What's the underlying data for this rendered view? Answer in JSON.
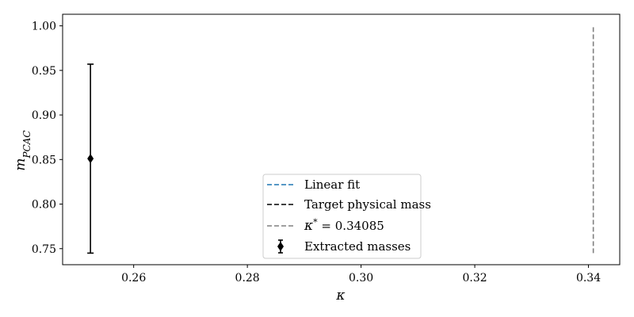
{
  "chart_data": {
    "type": "scatter",
    "xlabel": "κ",
    "ylabel": "m",
    "ylabel_sub": "PCAC",
    "xlim": [
      0.2475,
      0.3455
    ],
    "ylim": [
      0.732,
      1.013
    ],
    "x_ticks": [
      0.26,
      0.28,
      0.3,
      0.32,
      0.34
    ],
    "x_tick_labels": [
      "0.26",
      "0.28",
      "0.30",
      "0.32",
      "0.34"
    ],
    "y_ticks": [
      0.75,
      0.8,
      0.85,
      0.9,
      0.95,
      1.0
    ],
    "y_tick_labels": [
      "0.75",
      "0.80",
      "0.85",
      "0.90",
      "0.95",
      "1.00"
    ],
    "grid": false,
    "series": [
      {
        "name": "Extracted masses",
        "kind": "errorbar",
        "color": "#000000",
        "marker": "diamond",
        "points": [
          {
            "x": 0.2524,
            "y": 0.851,
            "yerr_low": 0.745,
            "yerr_high": 0.957
          }
        ]
      }
    ],
    "vlines": [
      {
        "name": "κ* = 0.34085",
        "x": 0.34085,
        "y_from": 0.745,
        "y_to": 1.0,
        "color": "#808080",
        "style": "dashed"
      }
    ],
    "legend": {
      "location": "lower-center",
      "entries": [
        {
          "label": "Linear fit",
          "color": "#1f77b4",
          "style": "dashed-line"
        },
        {
          "label": "Target physical mass",
          "color": "#000000",
          "style": "dashed-line"
        },
        {
          "label_prefix": "κ",
          "label_sup": "*",
          "label_suffix": " = 0.34085",
          "color": "#808080",
          "style": "dashed-line"
        },
        {
          "label": "Extracted masses",
          "color": "#000000",
          "style": "errorbar-marker"
        }
      ]
    }
  }
}
